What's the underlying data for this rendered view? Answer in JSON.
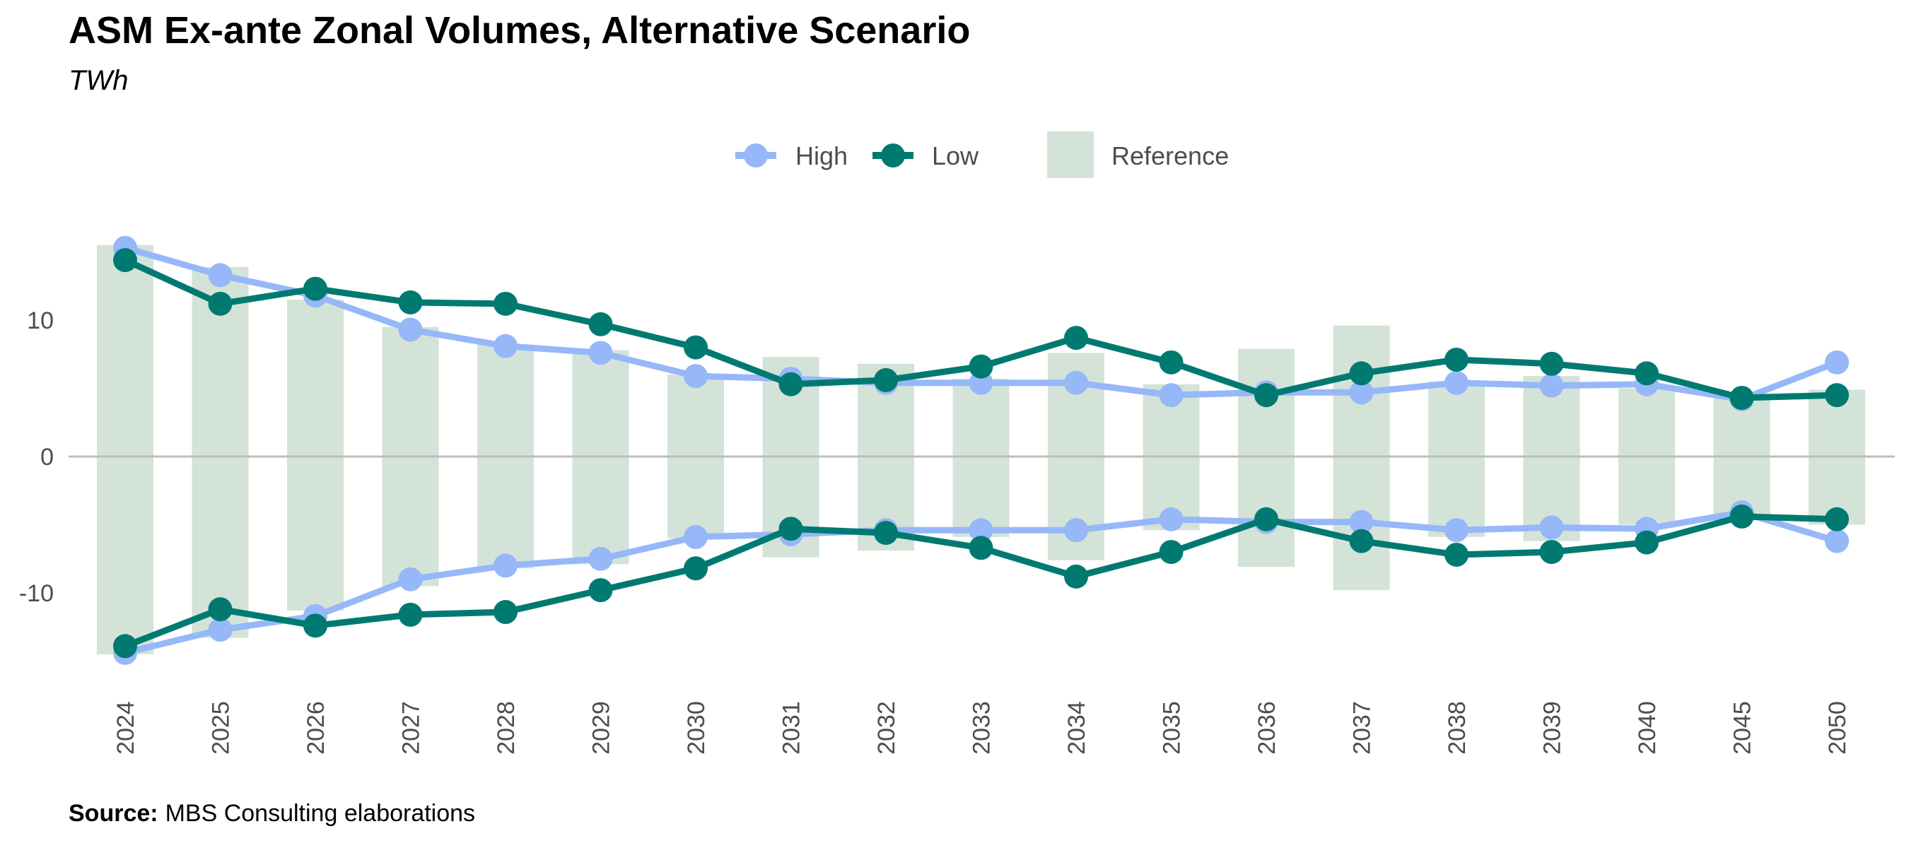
{
  "title": "ASM Ex-ante Zonal Volumes, Alternative Scenario",
  "subtitle": "TWh",
  "source_label": "Source:",
  "source_text": "MBS Consulting elaborations",
  "colors": {
    "high": "#96B8F9",
    "low": "#007A71",
    "reference": "#D4E3D8",
    "zero_line": "#BDBDBD",
    "tick_text": "#4d4d4d"
  },
  "chart_data": {
    "type": "line",
    "title": "ASM Ex-ante Zonal Volumes, Alternative Scenario",
    "subtitle": "TWh",
    "categories": [
      "2024",
      "2025",
      "2026",
      "2027",
      "2028",
      "2029",
      "2030",
      "2031",
      "2032",
      "2033",
      "2034",
      "2035",
      "2036",
      "2037",
      "2038",
      "2039",
      "2040",
      "2045",
      "2050"
    ],
    "yticks": [
      -10,
      0,
      10
    ],
    "ylim": [
      -17,
      19
    ],
    "grid": false,
    "legend_position": "top",
    "legend": [
      "High",
      "Low",
      "Reference"
    ],
    "reference": {
      "name": "Reference",
      "type": "bar",
      "upper": [
        15.5,
        13.9,
        11.5,
        9.5,
        8.2,
        7.8,
        6.0,
        7.3,
        6.8,
        5.7,
        7.6,
        5.3,
        7.9,
        9.6,
        5.5,
        5.9,
        5.0,
        4.6,
        4.9
      ],
      "lower": [
        -14.5,
        -13.3,
        -11.3,
        -9.5,
        -8.2,
        -7.9,
        -6.0,
        -7.4,
        -6.9,
        -5.9,
        -7.6,
        -5.4,
        -8.1,
        -9.8,
        -5.9,
        -6.2,
        -5.0,
        -4.6,
        -5.0
      ]
    },
    "series": [
      {
        "name": "High",
        "upper": [
          15.3,
          13.3,
          11.8,
          9.3,
          8.1,
          7.6,
          5.9,
          5.7,
          5.4,
          5.4,
          5.4,
          4.5,
          4.7,
          4.7,
          5.4,
          5.2,
          5.3,
          4.2,
          6.9
        ],
        "lower": [
          -14.4,
          -12.7,
          -11.7,
          -9.0,
          -8.0,
          -7.5,
          -5.9,
          -5.7,
          -5.4,
          -5.4,
          -5.4,
          -4.6,
          -4.8,
          -4.8,
          -5.4,
          -5.2,
          -5.3,
          -4.1,
          -6.2
        ]
      },
      {
        "name": "Low",
        "upper": [
          14.4,
          11.2,
          12.3,
          11.3,
          11.2,
          9.7,
          8.0,
          5.3,
          5.6,
          6.6,
          8.7,
          6.9,
          4.5,
          6.1,
          7.1,
          6.8,
          6.1,
          4.3,
          4.5
        ],
        "lower": [
          -13.9,
          -11.2,
          -12.4,
          -11.6,
          -11.4,
          -9.8,
          -8.2,
          -5.3,
          -5.6,
          -6.7,
          -8.8,
          -7.0,
          -4.6,
          -6.2,
          -7.2,
          -7.0,
          -6.3,
          -4.4,
          -4.6
        ]
      }
    ]
  }
}
